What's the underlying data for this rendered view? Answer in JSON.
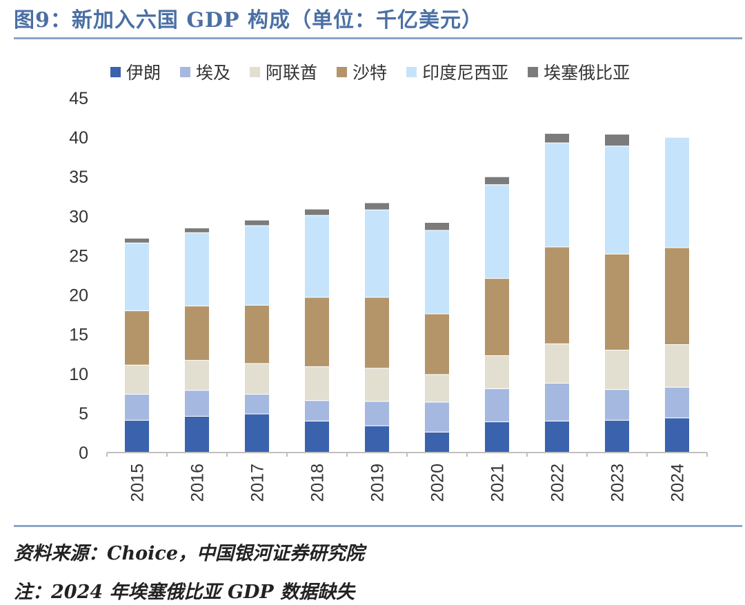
{
  "title": "图9：新加入六国 GDP 构成（单位：千亿美元）",
  "footnotes": {
    "source": "资料来源：Choice，中国银河证券研究院",
    "note": "注：2024 年埃塞俄比亚 GDP 数据缺失"
  },
  "chart_data": {
    "type": "bar",
    "stacked": true,
    "title": "新加入六国 GDP 构成（单位：千亿美元）",
    "xlabel": "",
    "ylabel": "",
    "ylim": [
      0,
      45
    ],
    "yticks": [
      "0",
      "5",
      "10",
      "15",
      "20",
      "25",
      "30",
      "35",
      "40",
      "45"
    ],
    "categories": [
      "2015",
      "2016",
      "2017",
      "2018",
      "2019",
      "2020",
      "2021",
      "2022",
      "2023",
      "2024"
    ],
    "legend_position": "top",
    "series": [
      {
        "name": "伊朗",
        "color": "#3a62ad",
        "values": [
          4.1,
          4.6,
          4.9,
          4.0,
          3.4,
          2.6,
          3.9,
          4.0,
          4.1,
          4.4
        ]
      },
      {
        "name": "埃及",
        "color": "#a5b8e0",
        "values": [
          3.3,
          3.3,
          2.5,
          2.6,
          3.1,
          3.8,
          4.2,
          4.8,
          3.9,
          3.9
        ]
      },
      {
        "name": "阿联酋",
        "color": "#e2dfd0",
        "values": [
          3.7,
          3.8,
          3.9,
          4.3,
          4.2,
          3.5,
          4.2,
          5.0,
          5.0,
          5.4
        ]
      },
      {
        "name": "沙特",
        "color": "#b4956a",
        "values": [
          6.9,
          6.9,
          7.4,
          8.8,
          9.0,
          7.7,
          9.8,
          12.3,
          12.2,
          12.3
        ]
      },
      {
        "name": "印度尼西亚",
        "color": "#c5e4fb",
        "values": [
          8.6,
          9.3,
          10.1,
          10.4,
          11.1,
          10.6,
          11.9,
          13.2,
          13.7,
          14.0
        ]
      },
      {
        "name": "埃塞俄比亚",
        "color": "#7b7b7b",
        "values": [
          0.6,
          0.6,
          0.7,
          0.8,
          0.9,
          1.0,
          1.0,
          1.2,
          1.5,
          0
        ]
      }
    ]
  }
}
